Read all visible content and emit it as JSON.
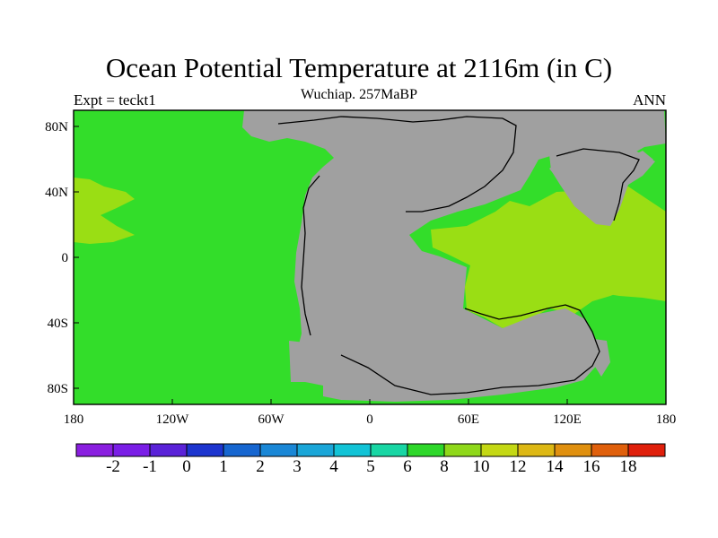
{
  "title": "Ocean Potential Temperature at 2116m (in C)",
  "subtitle": "Wuchiap. 257MaBP",
  "left_label": "Expt = teckt1",
  "right_label": "ANN",
  "axes": {
    "x_ticks": [
      "180",
      "120W",
      "60W",
      "0",
      "60E",
      "120E",
      "180"
    ],
    "y_ticks": [
      "80N",
      "40N",
      "0",
      "40S",
      "80S"
    ]
  },
  "colorbar": {
    "labels": [
      "-2",
      "-1",
      "0",
      "1",
      "2",
      "3",
      "4",
      "5",
      "6",
      "8",
      "10",
      "12",
      "14",
      "16",
      "18"
    ],
    "colors": [
      "#8a1fe0",
      "#7a1ee6",
      "#5a22d8",
      "#1d35cf",
      "#1666d0",
      "#1a87d6",
      "#1aa6d8",
      "#12c3d6",
      "#18d6a4",
      "#2ed72a",
      "#8fd81a",
      "#c4d814",
      "#ddb814",
      "#e0900f",
      "#e0600c",
      "#e0200c"
    ]
  },
  "colors": {
    "land": "#a0a0a0",
    "ocean_main": "#33dd2a",
    "ocean_warm": "#9ade14",
    "frame": "#000000"
  }
}
